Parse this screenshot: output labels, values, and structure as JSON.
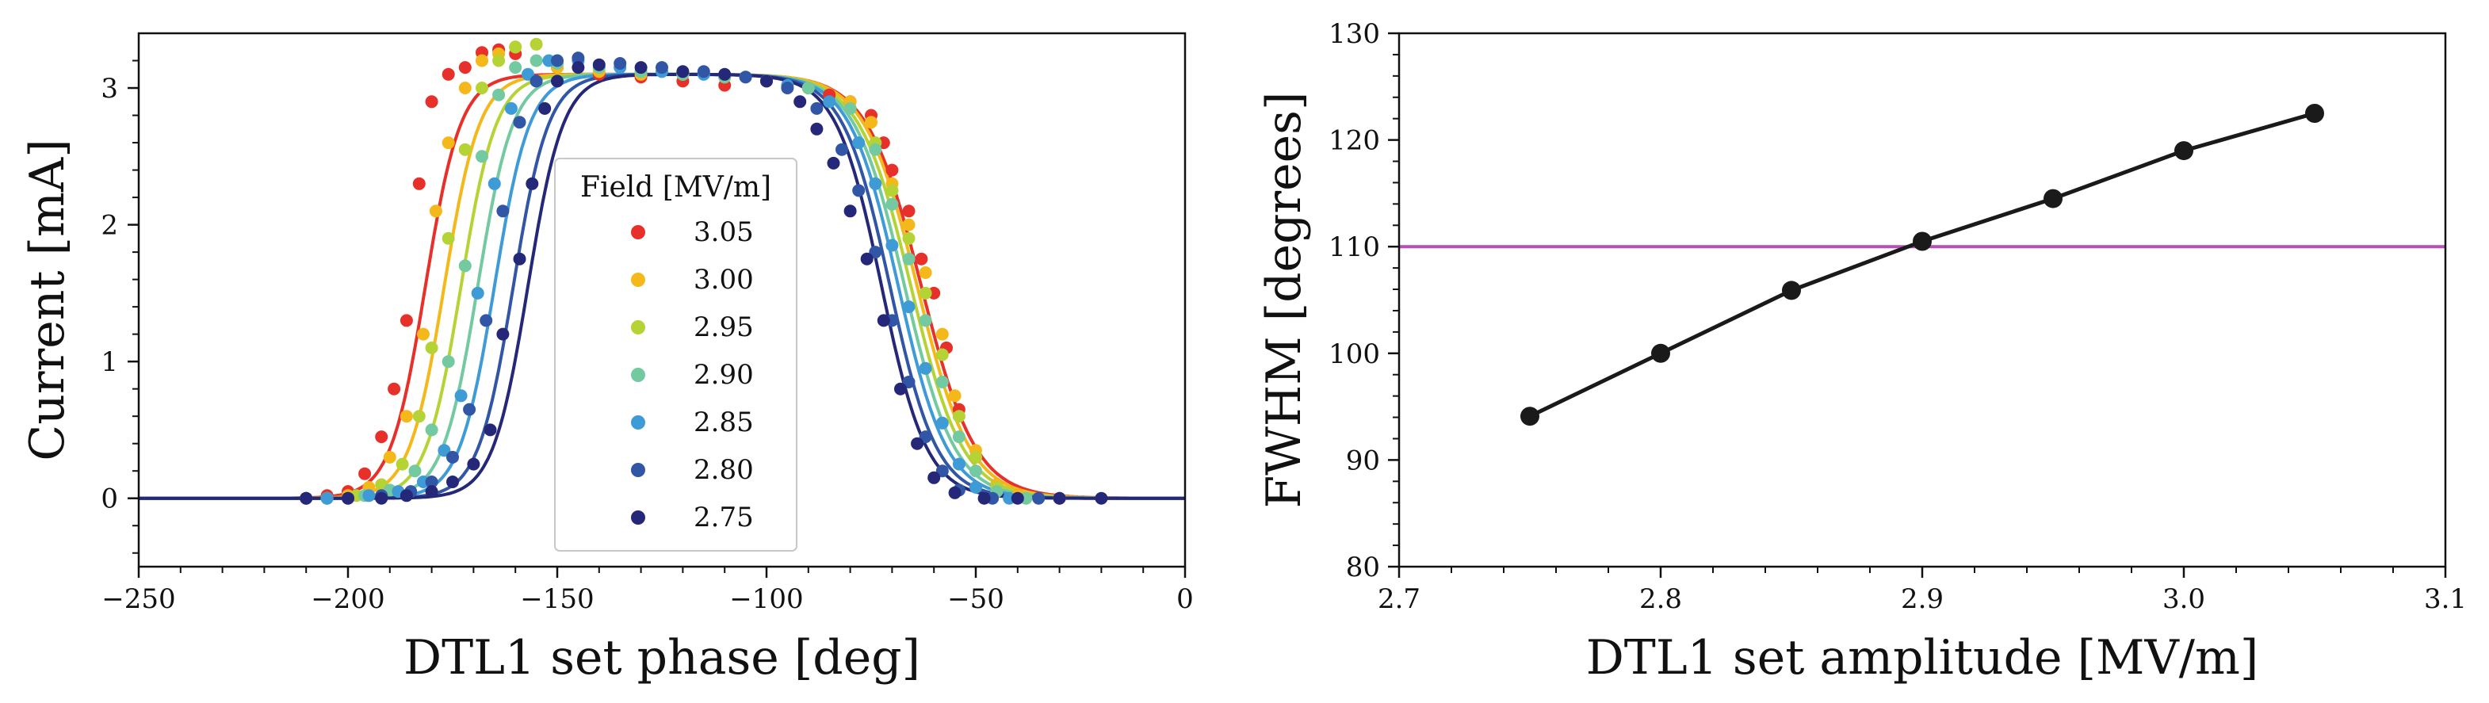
{
  "chart_data": [
    {
      "type": "scatter+line",
      "title": "",
      "xlabel": "DTL1 set phase [deg]",
      "ylabel": "Current [mA]",
      "xlim": [
        -250,
        0
      ],
      "ylim": [
        -0.5,
        3.4
      ],
      "xticks": [
        -250,
        -200,
        -150,
        -100,
        -50,
        0
      ],
      "xtick_labels": [
        "−250",
        "−200",
        "−150",
        "−100",
        "−50",
        "0"
      ],
      "yticks": [
        0,
        1,
        2,
        3
      ],
      "ytick_labels": [
        "0",
        "1",
        "2",
        "3"
      ],
      "legend": {
        "title": "Field [MV/m]",
        "location": "center",
        "entries": [
          "3.05",
          "3.00",
          "2.95",
          "2.90",
          "2.85",
          "2.80",
          "2.75"
        ]
      },
      "series": [
        {
          "name": "3.05",
          "color": "#e8302a",
          "plateau": 3.1,
          "rise_center": -181.5,
          "fall_center": -63,
          "rise_width": 4.2,
          "fall_width": 6.5,
          "points": [
            [
              -210,
              0.0
            ],
            [
              -205,
              0.02
            ],
            [
              -200,
              0.05
            ],
            [
              -196,
              0.18
            ],
            [
              -192,
              0.45
            ],
            [
              -189,
              0.8
            ],
            [
              -186,
              1.3
            ],
            [
              -183,
              2.3
            ],
            [
              -180,
              2.9
            ],
            [
              -176,
              3.1
            ],
            [
              -172,
              3.15
            ],
            [
              -168,
              3.26
            ],
            [
              -164,
              3.28
            ],
            [
              -160,
              3.25
            ],
            [
              -150,
              3.15
            ],
            [
              -140,
              3.1
            ],
            [
              -130,
              3.08
            ],
            [
              -120,
              3.05
            ],
            [
              -110,
              3.02
            ],
            [
              -100,
              3.05
            ],
            [
              -90,
              3.0
            ],
            [
              -85,
              2.95
            ],
            [
              -80,
              2.9
            ],
            [
              -75,
              2.8
            ],
            [
              -72,
              2.6
            ],
            [
              -70,
              2.4
            ],
            [
              -66,
              2.1
            ],
            [
              -63,
              1.75
            ],
            [
              -60,
              1.5
            ],
            [
              -57,
              1.1
            ],
            [
              -54,
              0.65
            ],
            [
              -50,
              0.3
            ],
            [
              -45,
              0.1
            ],
            [
              -40,
              0.02
            ],
            [
              -30,
              0.0
            ]
          ]
        },
        {
          "name": "3.00",
          "color": "#f5b81a",
          "plateau": 3.1,
          "rise_center": -177,
          "fall_center": -64,
          "rise_width": 4.2,
          "fall_width": 6.3,
          "points": [
            [
              -205,
              0.0
            ],
            [
              -200,
              0.02
            ],
            [
              -195,
              0.08
            ],
            [
              -190,
              0.3
            ],
            [
              -186,
              0.6
            ],
            [
              -182,
              1.2
            ],
            [
              -179,
              2.1
            ],
            [
              -176,
              2.6
            ],
            [
              -172,
              3.0
            ],
            [
              -168,
              3.2
            ],
            [
              -164,
              3.25
            ],
            [
              -160,
              3.3
            ],
            [
              -150,
              3.15
            ],
            [
              -140,
              3.12
            ],
            [
              -130,
              3.1
            ],
            [
              -120,
              3.1
            ],
            [
              -110,
              3.08
            ],
            [
              -100,
              3.05
            ],
            [
              -90,
              3.0
            ],
            [
              -80,
              2.9
            ],
            [
              -75,
              2.75
            ],
            [
              -70,
              2.3
            ],
            [
              -66,
              2.0
            ],
            [
              -62,
              1.65
            ],
            [
              -58,
              1.2
            ],
            [
              -55,
              0.75
            ],
            [
              -50,
              0.35
            ],
            [
              -45,
              0.1
            ],
            [
              -40,
              0.02
            ],
            [
              -30,
              0.0
            ]
          ]
        },
        {
          "name": "2.95",
          "color": "#b5d334",
          "plateau": 3.1,
          "rise_center": -173,
          "fall_center": -65.5,
          "rise_width": 4.2,
          "fall_width": 6.2,
          "points": [
            [
              -205,
              0.0
            ],
            [
              -198,
              0.02
            ],
            [
              -192,
              0.1
            ],
            [
              -187,
              0.25
            ],
            [
              -183,
              0.6
            ],
            [
              -180,
              1.1
            ],
            [
              -176,
              1.9
            ],
            [
              -172,
              2.55
            ],
            [
              -168,
              3.0
            ],
            [
              -164,
              3.2
            ],
            [
              -160,
              3.3
            ],
            [
              -155,
              3.32
            ],
            [
              -150,
              3.2
            ],
            [
              -140,
              3.15
            ],
            [
              -130,
              3.12
            ],
            [
              -120,
              3.1
            ],
            [
              -110,
              3.08
            ],
            [
              -100,
              3.05
            ],
            [
              -90,
              3.0
            ],
            [
              -80,
              2.85
            ],
            [
              -74,
              2.6
            ],
            [
              -70,
              2.25
            ],
            [
              -66,
              1.9
            ],
            [
              -62,
              1.5
            ],
            [
              -58,
              1.05
            ],
            [
              -54,
              0.6
            ],
            [
              -50,
              0.3
            ],
            [
              -45,
              0.08
            ],
            [
              -38,
              0.0
            ]
          ]
        },
        {
          "name": "2.90",
          "color": "#73c9a0",
          "plateau": 3.1,
          "rise_center": -169,
          "fall_center": -67,
          "rise_width": 4.2,
          "fall_width": 6.0,
          "points": [
            [
              -205,
              0.0
            ],
            [
              -196,
              0.02
            ],
            [
              -190,
              0.06
            ],
            [
              -184,
              0.2
            ],
            [
              -180,
              0.5
            ],
            [
              -176,
              1.0
            ],
            [
              -172,
              1.7
            ],
            [
              -168,
              2.5
            ],
            [
              -164,
              2.95
            ],
            [
              -160,
              3.15
            ],
            [
              -155,
              3.2
            ],
            [
              -150,
              3.18
            ],
            [
              -140,
              3.15
            ],
            [
              -130,
              3.12
            ],
            [
              -120,
              3.1
            ],
            [
              -110,
              3.08
            ],
            [
              -100,
              3.05
            ],
            [
              -90,
              3.0
            ],
            [
              -80,
              2.85
            ],
            [
              -74,
              2.55
            ],
            [
              -70,
              2.15
            ],
            [
              -66,
              1.75
            ],
            [
              -62,
              1.3
            ],
            [
              -58,
              0.85
            ],
            [
              -54,
              0.45
            ],
            [
              -50,
              0.2
            ],
            [
              -45,
              0.05
            ],
            [
              -38,
              0.0
            ]
          ]
        },
        {
          "name": "2.85",
          "color": "#3e9bd6",
          "plateau": 3.1,
          "rise_center": -165,
          "fall_center": -68.5,
          "rise_width": 4.2,
          "fall_width": 5.8,
          "points": [
            [
              -205,
              0.0
            ],
            [
              -195,
              0.02
            ],
            [
              -188,
              0.05
            ],
            [
              -182,
              0.12
            ],
            [
              -177,
              0.35
            ],
            [
              -173,
              0.75
            ],
            [
              -169,
              1.5
            ],
            [
              -165,
              2.3
            ],
            [
              -161,
              2.85
            ],
            [
              -157,
              3.1
            ],
            [
              -152,
              3.2
            ],
            [
              -145,
              3.2
            ],
            [
              -135,
              3.15
            ],
            [
              -125,
              3.12
            ],
            [
              -115,
              3.1
            ],
            [
              -105,
              3.08
            ],
            [
              -95,
              3.02
            ],
            [
              -85,
              2.9
            ],
            [
              -78,
              2.6
            ],
            [
              -74,
              2.3
            ],
            [
              -70,
              1.85
            ],
            [
              -66,
              1.4
            ],
            [
              -62,
              0.95
            ],
            [
              -58,
              0.55
            ],
            [
              -54,
              0.25
            ],
            [
              -50,
              0.08
            ],
            [
              -42,
              0.0
            ]
          ]
        },
        {
          "name": "2.80",
          "color": "#3256a6",
          "plateau": 3.1,
          "rise_center": -160.5,
          "fall_center": -70.5,
          "rise_width": 4.2,
          "fall_width": 5.6,
          "points": [
            [
              -210,
              0.0
            ],
            [
              -200,
              0.0
            ],
            [
              -192,
              0.02
            ],
            [
              -185,
              0.05
            ],
            [
              -180,
              0.12
            ],
            [
              -175,
              0.3
            ],
            [
              -171,
              0.65
            ],
            [
              -167,
              1.3
            ],
            [
              -163,
              2.1
            ],
            [
              -159,
              2.75
            ],
            [
              -155,
              3.05
            ],
            [
              -150,
              3.2
            ],
            [
              -145,
              3.22
            ],
            [
              -135,
              3.18
            ],
            [
              -125,
              3.15
            ],
            [
              -115,
              3.12
            ],
            [
              -105,
              3.08
            ],
            [
              -95,
              3.0
            ],
            [
              -88,
              2.85
            ],
            [
              -82,
              2.55
            ],
            [
              -78,
              2.25
            ],
            [
              -74,
              1.8
            ],
            [
              -70,
              1.3
            ],
            [
              -66,
              0.85
            ],
            [
              -62,
              0.45
            ],
            [
              -58,
              0.2
            ],
            [
              -54,
              0.06
            ],
            [
              -46,
              0.0
            ],
            [
              -35,
              0.0
            ]
          ]
        },
        {
          "name": "2.75",
          "color": "#252878",
          "plateau": 3.1,
          "rise_center": -157,
          "fall_center": -72.5,
          "rise_width": 4.2,
          "fall_width": 5.4,
          "points": [
            [
              -210,
              0.0
            ],
            [
              -200,
              0.0
            ],
            [
              -192,
              0.0
            ],
            [
              -186,
              0.02
            ],
            [
              -180,
              0.05
            ],
            [
              -175,
              0.12
            ],
            [
              -170,
              0.25
            ],
            [
              -166,
              0.5
            ],
            [
              -163,
              1.2
            ],
            [
              -159,
              1.75
            ],
            [
              -156,
              2.3
            ],
            [
              -153,
              2.85
            ],
            [
              -150,
              3.05
            ],
            [
              -145,
              3.15
            ],
            [
              -140,
              3.17
            ],
            [
              -130,
              3.15
            ],
            [
              -120,
              3.12
            ],
            [
              -110,
              3.1
            ],
            [
              -100,
              3.05
            ],
            [
              -92,
              2.9
            ],
            [
              -88,
              2.7
            ],
            [
              -84,
              2.45
            ],
            [
              -80,
              2.1
            ],
            [
              -76,
              1.75
            ],
            [
              -72,
              1.3
            ],
            [
              -68,
              0.8
            ],
            [
              -64,
              0.4
            ],
            [
              -60,
              0.15
            ],
            [
              -55,
              0.04
            ],
            [
              -48,
              0.0
            ],
            [
              -40,
              0.0
            ],
            [
              -30,
              0.0
            ],
            [
              -20,
              0.0
            ]
          ]
        }
      ]
    },
    {
      "type": "line",
      "title": "",
      "xlabel": "DTL1 set amplitude [MV/m]",
      "ylabel": "FWHM [degrees]",
      "xlim": [
        2.7,
        3.1
      ],
      "ylim": [
        80,
        130
      ],
      "xticks": [
        2.7,
        2.8,
        2.9,
        3.0,
        3.1
      ],
      "xtick_labels": [
        "2.7",
        "2.8",
        "2.9",
        "3.0",
        "3.1"
      ],
      "yticks": [
        80,
        90,
        100,
        110,
        120,
        130
      ],
      "ytick_labels": [
        "80",
        "90",
        "100",
        "110",
        "120",
        "130"
      ],
      "x": [
        2.75,
        2.8,
        2.85,
        2.9,
        2.95,
        3.0,
        3.05
      ],
      "values": [
        94.1,
        100.0,
        105.9,
        110.5,
        114.5,
        119.0,
        122.5
      ],
      "line_color": "#1a1a1a",
      "reference_line": {
        "y": 110,
        "color": "#b84fb8"
      }
    }
  ]
}
